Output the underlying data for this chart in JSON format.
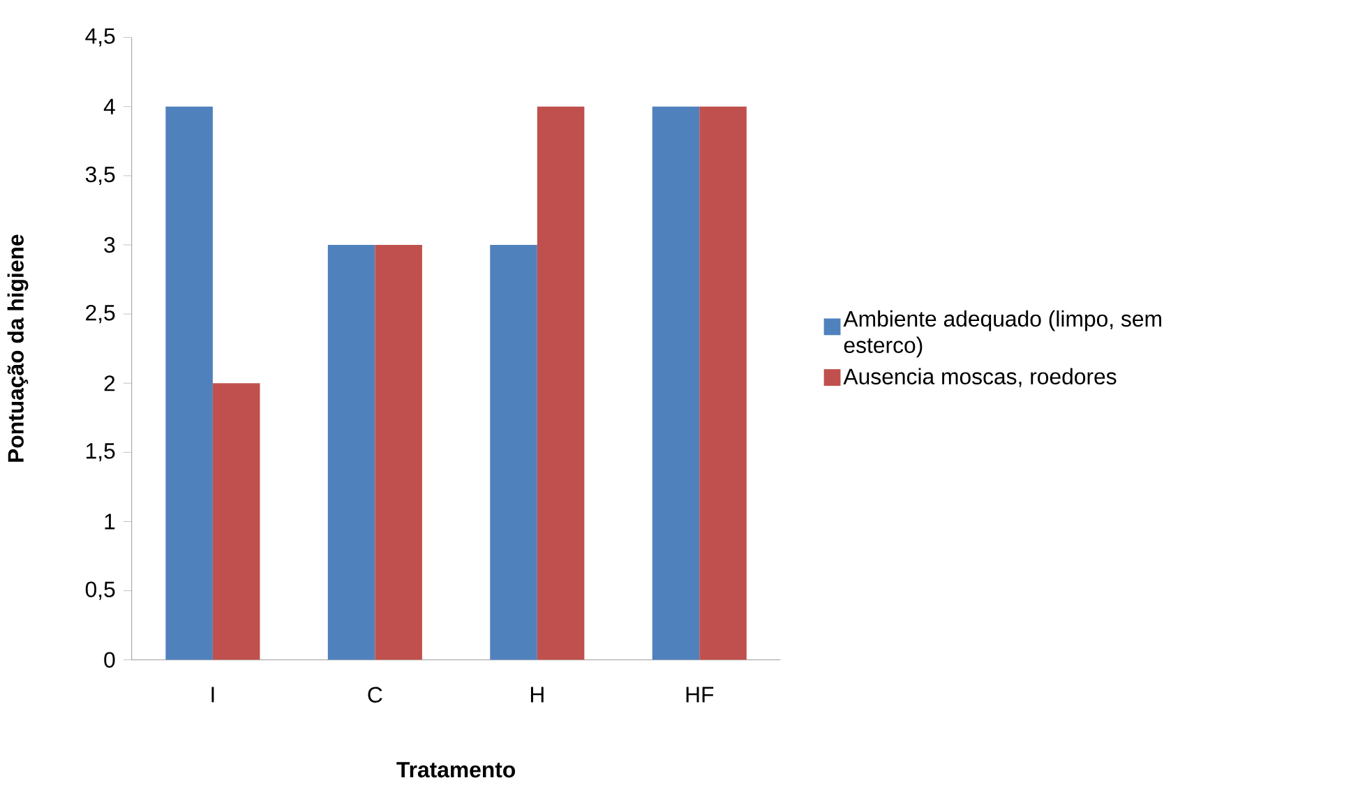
{
  "chart_data": {
    "type": "bar",
    "xlabel": "Tratamento",
    "ylabel": "Pontuação da higiene",
    "categories": [
      "I",
      "C",
      "H",
      "HF"
    ],
    "series": [
      {
        "name": "Ambiente adequado (limpo, sem esterco)",
        "color": "#4f81bd",
        "values": [
          4,
          3,
          3,
          4
        ]
      },
      {
        "name": "Ausencia moscas, roedores",
        "color": "#c0504d",
        "values": [
          2,
          3,
          4,
          4
        ]
      }
    ],
    "ylim": [
      0,
      4.5
    ],
    "yticks": [
      0,
      {
        "value": 0.5,
        "label": "0,5"
      },
      1,
      {
        "value": 1.5,
        "label": "1,5"
      },
      2,
      {
        "value": 2.5,
        "label": "2,5"
      },
      3,
      {
        "value": 3.5,
        "label": "3,5"
      },
      4,
      {
        "value": 4.5,
        "label": "4,5"
      }
    ],
    "grid": false,
    "legend": "right"
  }
}
